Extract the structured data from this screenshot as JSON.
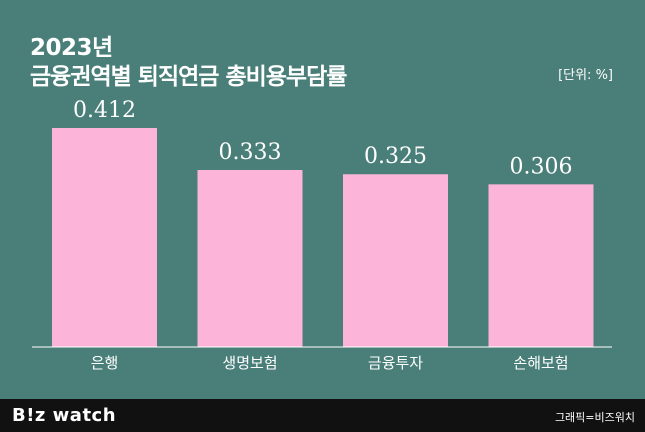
{
  "header": {
    "year": "2023년",
    "title": "금융권역별 퇴직연금 총비용부담률",
    "unit": "[단위: %]"
  },
  "footer": {
    "brand": "B!z watch",
    "credit": "그래픽=비즈워치"
  },
  "colors": {
    "background": "#4a7f79",
    "bar": "#fcb5d8",
    "footer": "#111111"
  },
  "chart_data": {
    "type": "bar",
    "categories": [
      "은행",
      "생명보험",
      "금융투자",
      "손해보험"
    ],
    "values": [
      0.412,
      0.333,
      0.325,
      0.306
    ],
    "value_labels": [
      "0.412",
      "0.333",
      "0.325",
      "0.306"
    ],
    "ylim": [
      0,
      0.412
    ],
    "grid": false,
    "legend": "none"
  }
}
